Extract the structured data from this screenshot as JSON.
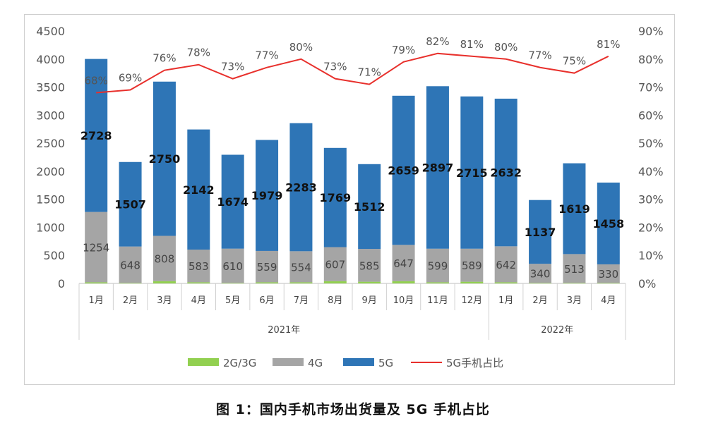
{
  "caption": "图 1：国内手机市场出货量及 5G 手机占比",
  "colors": {
    "s2g3g": "#92d050",
    "s4g": "#a5a5a5",
    "s5g": "#2e75b6",
    "ratio": "#e8302c"
  },
  "chart_data": {
    "type": "bar",
    "stacked": true,
    "categories": [
      "1月",
      "2月",
      "3月",
      "4月",
      "5月",
      "6月",
      "7月",
      "8月",
      "9月",
      "10月",
      "11月",
      "12月",
      "1月",
      "2月",
      "3月",
      "4月"
    ],
    "groups": [
      {
        "label": "2021年",
        "count": 12
      },
      {
        "label": "2022年",
        "count": 4
      }
    ],
    "y_left": {
      "min": 0,
      "max": 4500,
      "step": 500,
      "ticks": [
        "0",
        "500",
        "1000",
        "1500",
        "2000",
        "2500",
        "3000",
        "3500",
        "4000",
        "4500"
      ]
    },
    "y_right": {
      "min": 0,
      "max": 90,
      "step": 10,
      "ticks": [
        "0%",
        "10%",
        "20%",
        "30%",
        "40%",
        "50%",
        "60%",
        "70%",
        "80%",
        "90%"
      ]
    },
    "series": [
      {
        "name": "2G/3G",
        "values": [
          20,
          10,
          40,
          20,
          10,
          20,
          20,
          40,
          30,
          40,
          20,
          30,
          20,
          10,
          10,
          10
        ]
      },
      {
        "name": "4G",
        "values": [
          1254,
          648,
          808,
          583,
          610,
          559,
          554,
          607,
          585,
          647,
          599,
          589,
          642,
          340,
          513,
          330
        ],
        "labels": [
          "1254",
          "648",
          "808",
          "583",
          "610",
          "559",
          "554",
          "607",
          "585",
          "647",
          "599",
          "589",
          "642",
          "340",
          "513",
          "330"
        ]
      },
      {
        "name": "5G",
        "values": [
          2728,
          1507,
          2750,
          2142,
          1674,
          1979,
          2283,
          1769,
          1512,
          2659,
          2897,
          2715,
          2632,
          1137,
          1619,
          1458
        ],
        "labels": [
          "2728",
          "1507",
          "2750",
          "2142",
          "1674",
          "1979",
          "2283",
          "1769",
          "1512",
          "2659",
          "2897",
          "2715",
          "2632",
          "1137",
          "1619",
          "1458"
        ]
      },
      {
        "name": "5G手机占比",
        "type": "line",
        "axis": "right",
        "values": [
          68,
          69,
          76,
          78,
          73,
          77,
          80,
          73,
          71,
          79,
          82,
          81,
          80,
          77,
          75,
          81
        ],
        "labels": [
          "68%",
          "69%",
          "76%",
          "78%",
          "73%",
          "77%",
          "80%",
          "73%",
          "71%",
          "79%",
          "82%",
          "81%",
          "80%",
          "77%",
          "75%",
          "81%"
        ]
      }
    ],
    "legend": {
      "position": "bottom",
      "items": [
        "2G/3G",
        "4G",
        "5G",
        "5G手机占比"
      ]
    },
    "grid": false
  }
}
